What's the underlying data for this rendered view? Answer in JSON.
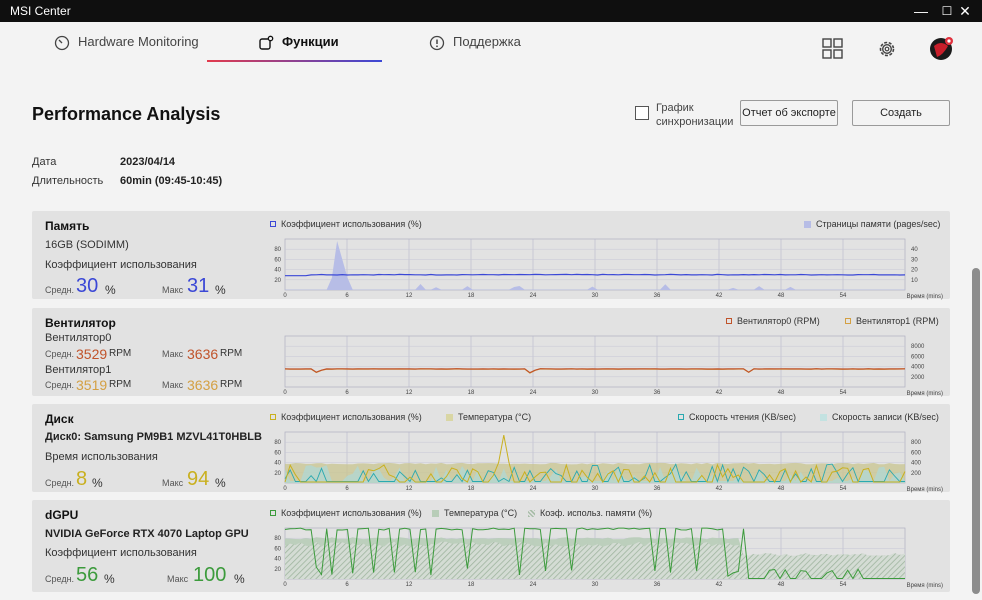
{
  "window": {
    "title": "MSI Center",
    "minimize": "—",
    "maximize": "☐",
    "close": "✕"
  },
  "tabs": [
    {
      "label": "Hardware Monitoring",
      "icon": "gauge-icon"
    },
    {
      "label": "Функции",
      "icon": "features-icon",
      "active": true
    },
    {
      "label": "Поддержка",
      "icon": "support-icon"
    }
  ],
  "header": {
    "title": "Performance Analysis",
    "sync_label": "График синхронизации",
    "export_label": "Отчет об экспорте",
    "create_label": "Создать"
  },
  "meta": {
    "date_label": "Дата",
    "date_value": "2023/04/14",
    "duration_label": "Длительность",
    "duration_value": "60min (09:45-10:45)"
  },
  "axis": {
    "x_ticks": [
      "0",
      "6",
      "12",
      "18",
      "24",
      "30",
      "36",
      "42",
      "48",
      "54"
    ],
    "x_label": "Время (mins)"
  },
  "memory": {
    "title": "Память",
    "capacity": "16GB (SODIMM)",
    "usage_label": "Коэффициент использования",
    "avg_label": "Средн.",
    "avg_value": "30",
    "avg_unit": "%",
    "max_label": "Макс",
    "max_value": "31",
    "max_unit": "%",
    "legend_left": "Коэффициент использования (%)",
    "legend_right": "Страницы памяти (pages/sec)",
    "y_left": [
      "80",
      "60",
      "40",
      "20"
    ],
    "y_right": [
      "40",
      "30",
      "20",
      "10"
    ],
    "color": "#3b48d6"
  },
  "fan": {
    "title": "Вентилятор",
    "fan0_label": "Вентилятор0",
    "fan0_avg_label": "Средн.",
    "fan0_avg": "3529",
    "fan0_unit": "RPM",
    "fan0_max_label": "Макс",
    "fan0_max": "3636",
    "fan0_max_unit": "RPM",
    "fan1_label": "Вентилятор1",
    "fan1_avg_label": "Средн.",
    "fan1_avg": "3519",
    "fan1_unit": "RPM",
    "fan1_max_label": "Макс",
    "fan1_max": "3636",
    "fan1_max_unit": "RPM",
    "legend_fan0": "Вентилятор0 (RPM)",
    "legend_fan1": "Вентилятор1 (RPM)",
    "y_right": [
      "8000",
      "6000",
      "4000",
      "2000"
    ],
    "color0": "#c0532a",
    "color1": "#d4a043"
  },
  "disk": {
    "title": "Диск",
    "name": "Диск0: Samsung PM9B1 MZVL41T0HBLB",
    "usage_label": "Время использования",
    "avg_label": "Средн.",
    "avg_value": "8",
    "avg_unit": "%",
    "max_label": "Макс",
    "max_value": "94",
    "max_unit": "%",
    "legend_usage": "Коэффициент использования (%)",
    "legend_temp": "Температура (°C)",
    "legend_read": "Скорость чтения (KB/sec)",
    "legend_write": "Скорость записи (KB/sec)",
    "y_left": [
      "80",
      "60",
      "40",
      "20"
    ],
    "y_right": [
      "800",
      "600",
      "400",
      "200"
    ],
    "color_usage": "#c9b020",
    "color_read": "#2aa9b0",
    "color_temp": "#c8c48f",
    "color_write": "#aed9d8"
  },
  "gpu": {
    "title": "dGPU",
    "name": "NVIDIA GeForce RTX 4070 Laptop GPU",
    "usage_label": "Коэффициент использования",
    "avg_label": "Средн.",
    "avg_value": "56",
    "avg_unit": "%",
    "max_label": "Макс",
    "max_value": "100",
    "max_unit": "%",
    "legend_usage": "Коэффициент использования (%)",
    "legend_temp": "Температура (°C)",
    "legend_mem": "Коэф. использ. памяти (%)",
    "y_left": [
      "80",
      "60",
      "40",
      "20"
    ],
    "color": "#3c9b3c"
  }
}
